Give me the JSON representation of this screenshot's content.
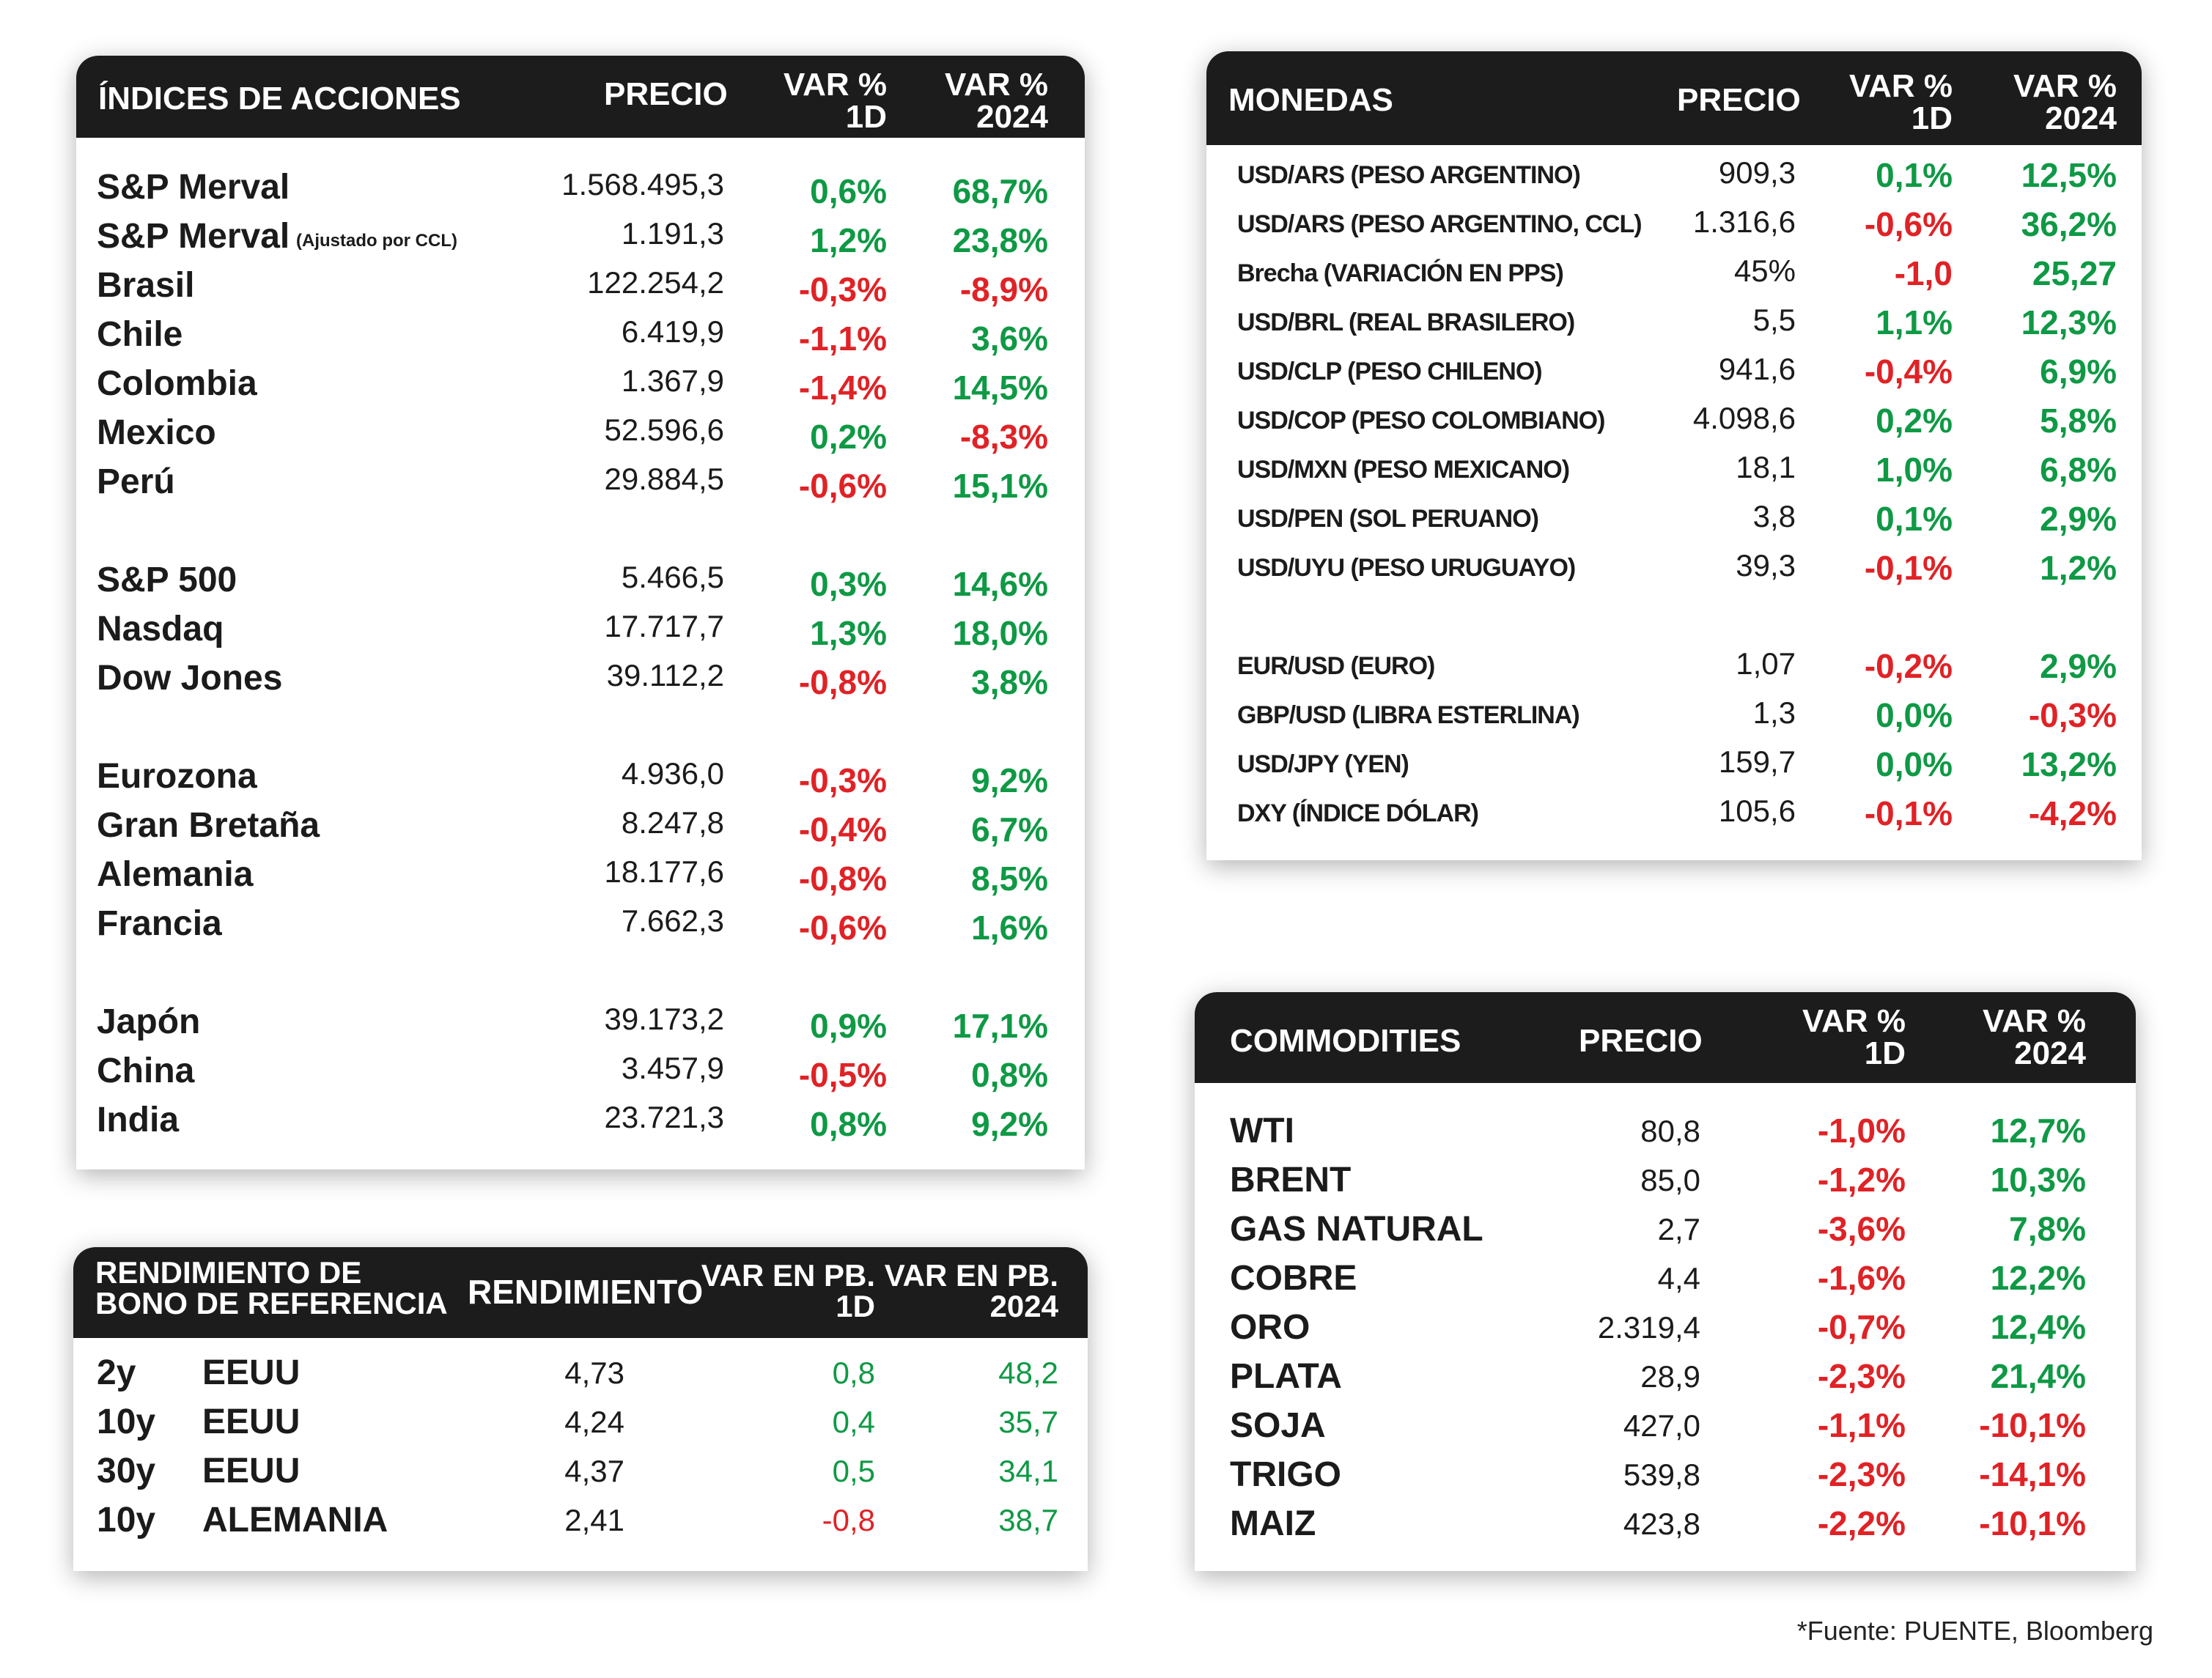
{
  "stocks": {
    "header": {
      "name": "ÍNDICES DE ACCIONES",
      "price": "PRECIO",
      "var1d": [
        "VAR %",
        "1D"
      ],
      "var2024": [
        "VAR %",
        "2024"
      ]
    },
    "rows": [
      {
        "name": "S&P Merval",
        "note": "",
        "price": "1.568.495,3",
        "d1": "0,6%",
        "y": "68,7%",
        "d1_sign": "pos",
        "y_sign": "pos",
        "gap": false
      },
      {
        "name": "S&P Merval",
        "note": "(Ajustado por CCL)",
        "price": "1.191,3",
        "d1": "1,2%",
        "y": "23,8%",
        "d1_sign": "pos",
        "y_sign": "pos",
        "gap": false
      },
      {
        "name": "Brasil",
        "note": "",
        "price": "122.254,2",
        "d1": "-0,3%",
        "y": "-8,9%",
        "d1_sign": "neg",
        "y_sign": "neg",
        "gap": false
      },
      {
        "name": "Chile",
        "note": "",
        "price": "6.419,9",
        "d1": "-1,1%",
        "y": "3,6%",
        "d1_sign": "neg",
        "y_sign": "pos",
        "gap": false
      },
      {
        "name": "Colombia",
        "note": "",
        "price": "1.367,9",
        "d1": "-1,4%",
        "y": "14,5%",
        "d1_sign": "neg",
        "y_sign": "pos",
        "gap": false
      },
      {
        "name": "Mexico",
        "note": "",
        "price": "52.596,6",
        "d1": "0,2%",
        "y": "-8,3%",
        "d1_sign": "pos",
        "y_sign": "neg",
        "gap": false
      },
      {
        "name": "Perú",
        "note": "",
        "price": "29.884,5",
        "d1": "-0,6%",
        "y": "15,1%",
        "d1_sign": "neg",
        "y_sign": "pos",
        "gap": false
      },
      {
        "name": "S&P 500",
        "note": "",
        "price": "5.466,5",
        "d1": "0,3%",
        "y": "14,6%",
        "d1_sign": "pos",
        "y_sign": "pos",
        "gap": true
      },
      {
        "name": "Nasdaq",
        "note": "",
        "price": "17.717,7",
        "d1": "1,3%",
        "y": "18,0%",
        "d1_sign": "pos",
        "y_sign": "pos",
        "gap": false
      },
      {
        "name": "Dow Jones",
        "note": "",
        "price": "39.112,2",
        "d1": "-0,8%",
        "y": "3,8%",
        "d1_sign": "neg",
        "y_sign": "pos",
        "gap": false
      },
      {
        "name": "Eurozona",
        "note": "",
        "price": "4.936,0",
        "d1": "-0,3%",
        "y": "9,2%",
        "d1_sign": "neg",
        "y_sign": "pos",
        "gap": true
      },
      {
        "name": "Gran Bretaña",
        "note": "",
        "price": "8.247,8",
        "d1": "-0,4%",
        "y": "6,7%",
        "d1_sign": "neg",
        "y_sign": "pos",
        "gap": false
      },
      {
        "name": "Alemania",
        "note": "",
        "price": "18.177,6",
        "d1": "-0,8%",
        "y": "8,5%",
        "d1_sign": "neg",
        "y_sign": "pos",
        "gap": false
      },
      {
        "name": "Francia",
        "note": "",
        "price": "7.662,3",
        "d1": "-0,6%",
        "y": "1,6%",
        "d1_sign": "neg",
        "y_sign": "pos",
        "gap": false
      },
      {
        "name": "Japón",
        "note": "",
        "price": "39.173,2",
        "d1": "0,9%",
        "y": "17,1%",
        "d1_sign": "pos",
        "y_sign": "pos",
        "gap": true
      },
      {
        "name": "China",
        "note": "",
        "price": "3.457,9",
        "d1": "-0,5%",
        "y": "0,8%",
        "d1_sign": "neg",
        "y_sign": "pos",
        "gap": false
      },
      {
        "name": "India",
        "note": "",
        "price": "23.721,3",
        "d1": "0,8%",
        "y": "9,2%",
        "d1_sign": "pos",
        "y_sign": "pos",
        "gap": false
      }
    ]
  },
  "currencies": {
    "header": {
      "name": "MONEDAS",
      "price": "PRECIO",
      "var1d": [
        "VAR %",
        "1D"
      ],
      "var2024": [
        "VAR %",
        "2024"
      ]
    },
    "rows": [
      {
        "name": "USD/ARS (PESO ARGENTINO)",
        "price": "909,3",
        "d1": "0,1%",
        "y": "12,5%",
        "d1_sign": "pos",
        "y_sign": "pos",
        "gap": false
      },
      {
        "name": "USD/ARS (PESO ARGENTINO, CCL)",
        "price": "1.316,6",
        "d1": "-0,6%",
        "y": "36,2%",
        "d1_sign": "neg",
        "y_sign": "pos",
        "gap": false
      },
      {
        "name": "Brecha (VARIACIÓN EN PPS)",
        "price": "45%",
        "d1": "-1,0",
        "y": "25,27",
        "d1_sign": "neg",
        "y_sign": "pos",
        "gap": false
      },
      {
        "name": "USD/BRL (REAL BRASILERO)",
        "price": "5,5",
        "d1": "1,1%",
        "y": "12,3%",
        "d1_sign": "pos",
        "y_sign": "pos",
        "gap": false
      },
      {
        "name": "USD/CLP (PESO CHILENO)",
        "price": "941,6",
        "d1": "-0,4%",
        "y": "6,9%",
        "d1_sign": "neg",
        "y_sign": "pos",
        "gap": false
      },
      {
        "name": "USD/COP (PESO COLOMBIANO)",
        "price": "4.098,6",
        "d1": "0,2%",
        "y": "5,8%",
        "d1_sign": "pos",
        "y_sign": "pos",
        "gap": false
      },
      {
        "name": "USD/MXN (PESO MEXICANO)",
        "price": "18,1",
        "d1": "1,0%",
        "y": "6,8%",
        "d1_sign": "pos",
        "y_sign": "pos",
        "gap": false
      },
      {
        "name": "USD/PEN (SOL PERUANO)",
        "price": "3,8",
        "d1": "0,1%",
        "y": "2,9%",
        "d1_sign": "pos",
        "y_sign": "pos",
        "gap": false
      },
      {
        "name": "USD/UYU (PESO URUGUAYO)",
        "price": "39,3",
        "d1": "-0,1%",
        "y": "1,2%",
        "d1_sign": "neg",
        "y_sign": "pos",
        "gap": false
      },
      {
        "name": "EUR/USD (EURO)",
        "price": "1,07",
        "d1": "-0,2%",
        "y": "2,9%",
        "d1_sign": "neg",
        "y_sign": "pos",
        "gap": true
      },
      {
        "name": "GBP/USD (LIBRA ESTERLINA)",
        "price": "1,3",
        "d1": "0,0%",
        "y": "-0,3%",
        "d1_sign": "pos",
        "y_sign": "neg",
        "gap": false
      },
      {
        "name": "USD/JPY (YEN)",
        "price": "159,7",
        "d1": "0,0%",
        "y": "13,2%",
        "d1_sign": "pos",
        "y_sign": "pos",
        "gap": false
      },
      {
        "name": "DXY (ÍNDICE DÓLAR)",
        "price": "105,6",
        "d1": "-0,1%",
        "y": "-4,2%",
        "d1_sign": "neg",
        "y_sign": "neg",
        "gap": false
      }
    ]
  },
  "bonds": {
    "header": {
      "name": [
        "RENDIMIENTO DE",
        "BONO DE REFERENCIA"
      ],
      "price": "RENDIMIENTO",
      "var1d": [
        "VAR EN PB.",
        "1D"
      ],
      "var2024": [
        "VAR EN PB.",
        "2024"
      ]
    },
    "rows": [
      {
        "term": "2y",
        "country": "EEUU",
        "price": "4,73",
        "d1": "0,8",
        "y": "48,2",
        "d1_sign": "pos",
        "y_sign": "pos"
      },
      {
        "term": "10y",
        "country": "EEUU",
        "price": "4,24",
        "d1": "0,4",
        "y": "35,7",
        "d1_sign": "pos",
        "y_sign": "pos"
      },
      {
        "term": "30y",
        "country": "EEUU",
        "price": "4,37",
        "d1": "0,5",
        "y": "34,1",
        "d1_sign": "pos",
        "y_sign": "pos"
      },
      {
        "term": "10y",
        "country": "ALEMANIA",
        "price": "2,41",
        "d1": "-0,8",
        "y": "38,7",
        "d1_sign": "neg",
        "y_sign": "pos"
      }
    ]
  },
  "commodities": {
    "header": {
      "name": "COMMODITIES",
      "price": "PRECIO",
      "var1d": [
        "VAR %",
        "1D"
      ],
      "var2024": [
        "VAR %",
        "2024"
      ]
    },
    "rows": [
      {
        "name": "WTI",
        "price": "80,8",
        "d1": "-1,0%",
        "y": "12,7%",
        "d1_sign": "neg",
        "y_sign": "pos"
      },
      {
        "name": "BRENT",
        "price": "85,0",
        "d1": "-1,2%",
        "y": "10,3%",
        "d1_sign": "neg",
        "y_sign": "pos"
      },
      {
        "name": "GAS NATURAL",
        "price": "2,7",
        "d1": "-3,6%",
        "y": "7,8%",
        "d1_sign": "neg",
        "y_sign": "pos"
      },
      {
        "name": "COBRE",
        "price": "4,4",
        "d1": "-1,6%",
        "y": "12,2%",
        "d1_sign": "neg",
        "y_sign": "pos"
      },
      {
        "name": "ORO",
        "price": "2.319,4",
        "d1": "-0,7%",
        "y": "12,4%",
        "d1_sign": "neg",
        "y_sign": "pos"
      },
      {
        "name": "PLATA",
        "price": "28,9",
        "d1": "-2,3%",
        "y": "21,4%",
        "d1_sign": "neg",
        "y_sign": "pos"
      },
      {
        "name": "SOJA",
        "price": "427,0",
        "d1": "-1,1%",
        "y": "-10,1%",
        "d1_sign": "neg",
        "y_sign": "neg"
      },
      {
        "name": "TRIGO",
        "price": "539,8",
        "d1": "-2,3%",
        "y": "-14,1%",
        "d1_sign": "neg",
        "y_sign": "neg"
      },
      {
        "name": "MAIZ",
        "price": "423,8",
        "d1": "-2,2%",
        "y": "-10,1%",
        "d1_sign": "neg",
        "y_sign": "neg"
      }
    ]
  },
  "footnote": "*Fuente: PUENTE, Bloomberg",
  "colors": {
    "positive": "#0f9945",
    "negative": "#e02226",
    "header_bg": "#1c1c1c"
  }
}
